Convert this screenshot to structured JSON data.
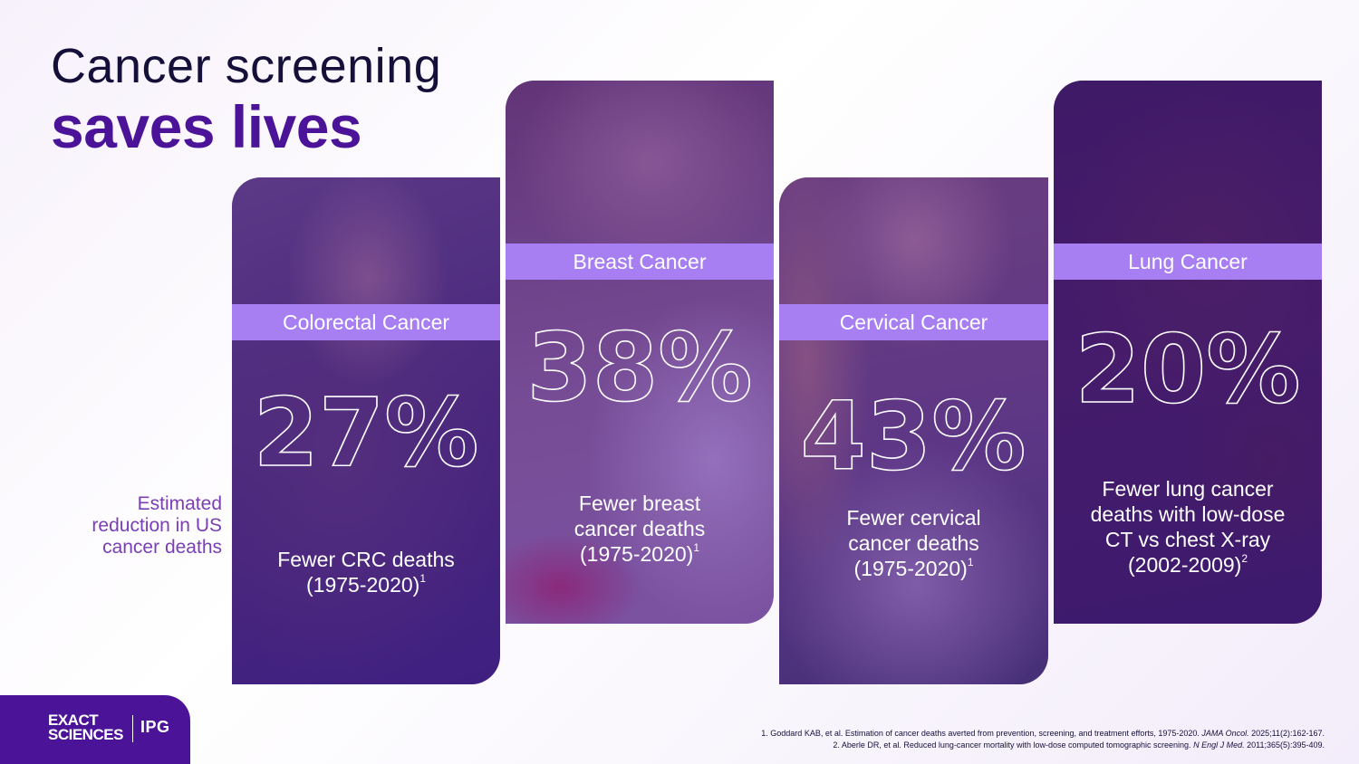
{
  "title": {
    "line1": "Cancer screening",
    "line2": "saves lives"
  },
  "side_label": "Estimated reduction in US cancer deaths",
  "cards": [
    {
      "category": "Colorectal Cancer",
      "stat": "27%",
      "desc_lines": [
        "Fewer CRC deaths",
        "(1975-2020)"
      ],
      "footnote_ref": "1"
    },
    {
      "category": "Breast Cancer",
      "stat": "38%",
      "desc_lines": [
        "Fewer breast",
        "cancer deaths",
        "(1975-2020)"
      ],
      "footnote_ref": "1"
    },
    {
      "category": "Cervical Cancer",
      "stat": "43%",
      "desc_lines": [
        "Fewer cervical",
        "cancer deaths",
        "(1975-2020)"
      ],
      "footnote_ref": "1"
    },
    {
      "category": "Lung Cancer",
      "stat": "20%",
      "desc_lines": [
        "Fewer lung cancer",
        "deaths with low-dose",
        "CT vs chest X-ray",
        "(2002-2009)"
      ],
      "footnote_ref": "2"
    }
  ],
  "logo": {
    "exact_line1": "EXACT",
    "exact_line2": "SCIENCES",
    "ipg": "IPG"
  },
  "footnotes": {
    "ref1_pre": "1. Goddard KAB, et al. Estimation of cancer deaths averted from prevention, screening, and treatment efforts, 1975-2020. ",
    "ref1_journal": "JAMA Oncol.",
    "ref1_post": " 2025;11(2):162-167.",
    "ref2_pre": "2. Aberle DR, et al. Reduced lung-cancer mortality with low-dose computed tomographic screening. ",
    "ref2_journal": "N Engl J Med.",
    "ref2_post": " 2011;365(5):395-409."
  },
  "colors": {
    "brand_purple": "#4b1398",
    "band_lavender": "#a77ff2",
    "title_dark": "#14103a",
    "label_purple": "#7a3eb6"
  }
}
